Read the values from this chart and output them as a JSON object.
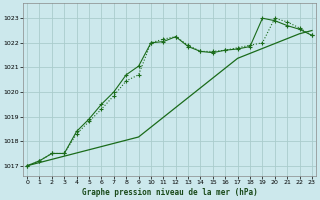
{
  "title": "Graphe pression niveau de la mer (hPa)",
  "background_color": "#cce8ec",
  "grid_color": "#aacccc",
  "line_color": "#1a6b1a",
  "x_ticks": [
    0,
    1,
    2,
    3,
    4,
    5,
    6,
    7,
    8,
    9,
    10,
    11,
    12,
    13,
    14,
    15,
    16,
    17,
    18,
    19,
    20,
    21,
    22,
    23
  ],
  "y_ticks": [
    1017,
    1018,
    1019,
    1020,
    1021,
    1022,
    1023
  ],
  "ylim": [
    1016.6,
    1023.6
  ],
  "xlim": [
    -0.3,
    23.3
  ],
  "series1_x": [
    0,
    1,
    2,
    3,
    4,
    5,
    6,
    7,
    8,
    9,
    10,
    11,
    12,
    13,
    14,
    15,
    16,
    17,
    18,
    19,
    20,
    21,
    22,
    23
  ],
  "series1_y": [
    1017.0,
    1017.13,
    1017.26,
    1017.39,
    1017.52,
    1017.65,
    1017.78,
    1017.91,
    1018.04,
    1018.17,
    1018.57,
    1018.97,
    1019.37,
    1019.77,
    1020.17,
    1020.57,
    1020.97,
    1021.37,
    1021.57,
    1021.77,
    1021.97,
    1022.17,
    1022.37,
    1022.5
  ],
  "series2_x": [
    0,
    1,
    2,
    3,
    4,
    5,
    6,
    7,
    8,
    9,
    10,
    11,
    12,
    13,
    14,
    15,
    16,
    17,
    18,
    19,
    20,
    21,
    22,
    23
  ],
  "series2_y": [
    1017.0,
    1017.2,
    1017.5,
    1017.5,
    1018.3,
    1018.8,
    1019.3,
    1019.85,
    1020.45,
    1020.7,
    1022.0,
    1022.15,
    1022.25,
    1021.9,
    1021.65,
    1021.65,
    1021.7,
    1021.8,
    1021.9,
    1022.0,
    1023.0,
    1022.85,
    1022.6,
    1022.3
  ],
  "series3_x": [
    0,
    1,
    2,
    3,
    4,
    5,
    6,
    7,
    8,
    9,
    10,
    11,
    12,
    13,
    14,
    15,
    16,
    17,
    18,
    19,
    20,
    21,
    22,
    23
  ],
  "series3_y": [
    1017.0,
    1017.2,
    1017.5,
    1017.5,
    1018.4,
    1018.9,
    1019.5,
    1020.0,
    1020.7,
    1021.05,
    1022.0,
    1022.05,
    1022.25,
    1021.85,
    1021.65,
    1021.6,
    1021.7,
    1021.75,
    1021.85,
    1023.0,
    1022.9,
    1022.7,
    1022.55,
    1022.3
  ]
}
